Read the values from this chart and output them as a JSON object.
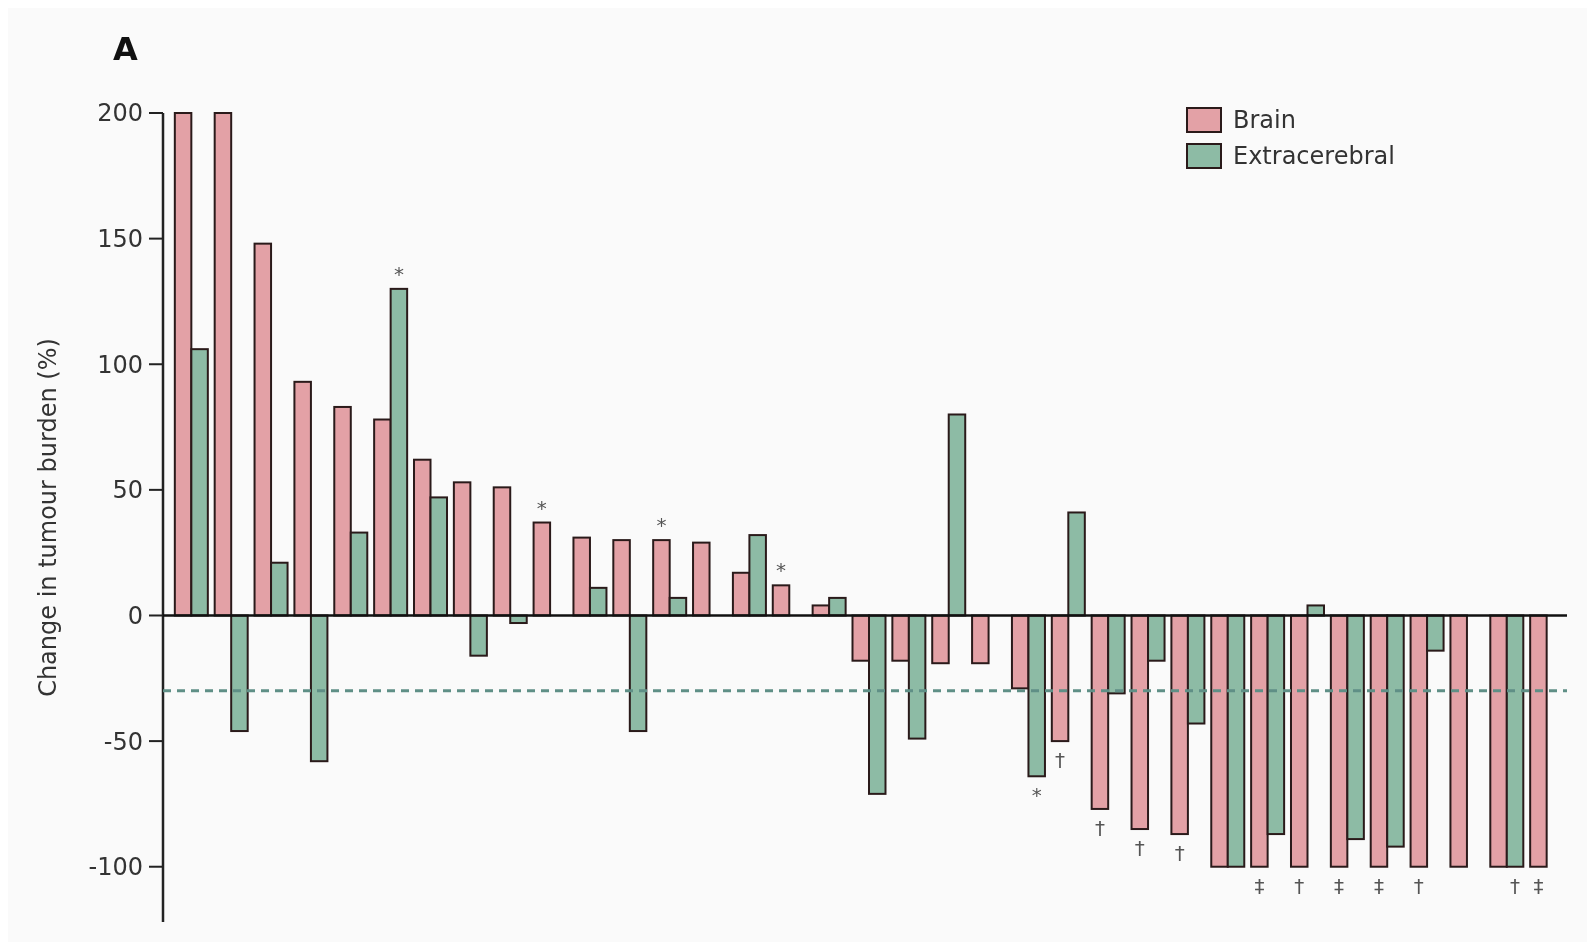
{
  "chart_data": {
    "type": "bar",
    "title": "A",
    "ylabel": "Change in tumour burden (%)",
    "categories": [
      null,
      null,
      null,
      null,
      null,
      null,
      null,
      null,
      null,
      null,
      null,
      null,
      null,
      null,
      null,
      null,
      null,
      null,
      null,
      null,
      null,
      null,
      null,
      null,
      null,
      null,
      null,
      null,
      null,
      null,
      null,
      null,
      null,
      null,
      null
    ],
    "series": [
      {
        "name": "Brain",
        "color": "#e3a1a6",
        "values": [
          200,
          200,
          148,
          93,
          83,
          78,
          62,
          53,
          51,
          37,
          31,
          30,
          30,
          29,
          17,
          12,
          4,
          -18,
          -18,
          -19,
          -19,
          -29,
          -50,
          -77,
          -85,
          -87,
          -100,
          -100,
          -100,
          -100,
          -100,
          -100,
          -100,
          -100,
          -100
        ],
        "value_labels": [
          null,
          null,
          null,
          null,
          null,
          null,
          null,
          null,
          null,
          "*",
          null,
          null,
          "*",
          null,
          null,
          "*",
          null,
          null,
          null,
          null,
          null,
          null,
          "†",
          "†",
          "†",
          "†",
          null,
          "‡",
          "†",
          "‡",
          "‡",
          "†",
          null,
          null,
          "‡"
        ]
      },
      {
        "name": "Extracerebral",
        "color": "#8dbba5",
        "values": [
          106,
          -46,
          21,
          -58,
          33,
          130,
          47,
          -16,
          -3,
          null,
          11,
          -46,
          7,
          null,
          32,
          null,
          7,
          -71,
          -49,
          80,
          null,
          -64,
          41,
          -31,
          -18,
          -43,
          -100,
          -87,
          4,
          -89,
          -92,
          -14,
          null,
          -100,
          null
        ],
        "value_labels": [
          null,
          null,
          null,
          null,
          null,
          "*",
          null,
          null,
          null,
          null,
          null,
          null,
          null,
          null,
          null,
          null,
          null,
          null,
          null,
          null,
          null,
          "*",
          null,
          null,
          null,
          null,
          null,
          null,
          null,
          null,
          null,
          null,
          null,
          "†",
          null
        ]
      }
    ],
    "ylim": [
      -122,
      200
    ],
    "yticks": [
      -100,
      -50,
      0,
      50,
      100,
      150,
      200
    ],
    "ref_lines": [
      {
        "axis": "y",
        "value": -30,
        "color": "#5f8f86",
        "line_style": "dashed"
      }
    ],
    "legend": "top right"
  }
}
